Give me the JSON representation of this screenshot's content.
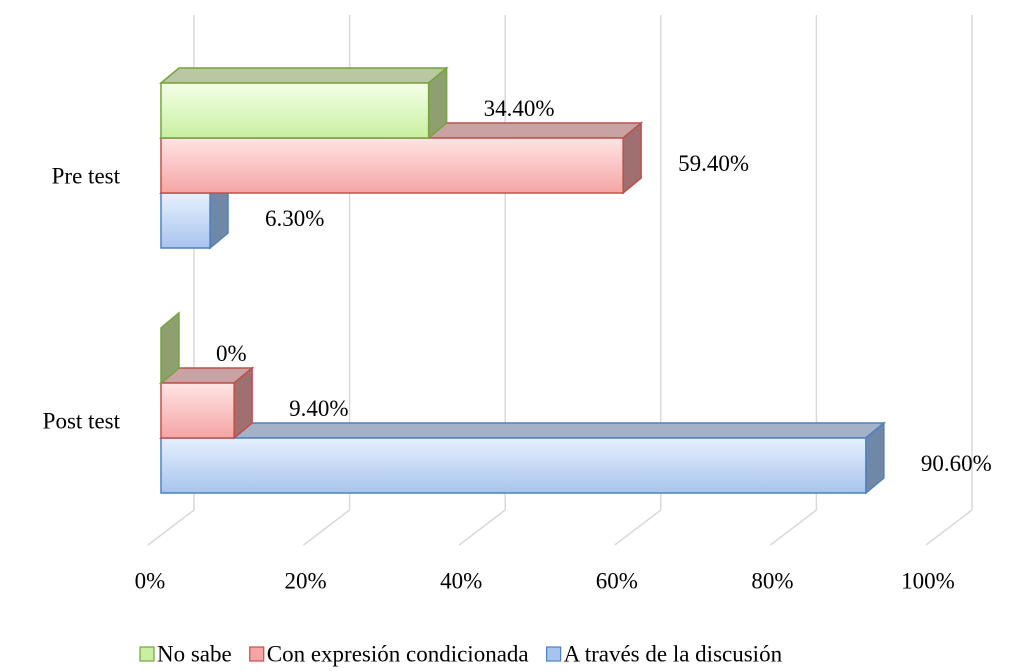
{
  "chart_data": {
    "type": "bar3d_horizontal",
    "categories": [
      "Pre test",
      "Post test"
    ],
    "series": [
      {
        "name": "No sabe",
        "color": "#c8f0a0",
        "values": [
          34.4,
          0
        ],
        "value_labels": [
          "34.40%",
          "0%"
        ]
      },
      {
        "name": "Con expresión condicionada",
        "color": "#f5a5a5",
        "values": [
          59.4,
          9.4
        ],
        "value_labels": [
          "59.40%",
          "9.40%"
        ]
      },
      {
        "name": "A través de la discusión",
        "color": "#a8c4ee",
        "values": [
          6.3,
          90.6
        ],
        "value_labels": [
          "6.30%",
          "90.60%"
        ]
      }
    ],
    "xlim": [
      0,
      100
    ],
    "xticks": [
      {
        "value": 0,
        "label": "0%"
      },
      {
        "value": 20,
        "label": "20%"
      },
      {
        "value": 40,
        "label": "40%"
      },
      {
        "value": 60,
        "label": "60%"
      },
      {
        "value": 80,
        "label": "80%"
      },
      {
        "value": 100,
        "label": "100%"
      }
    ],
    "grid": true,
    "legend": "bottom"
  }
}
